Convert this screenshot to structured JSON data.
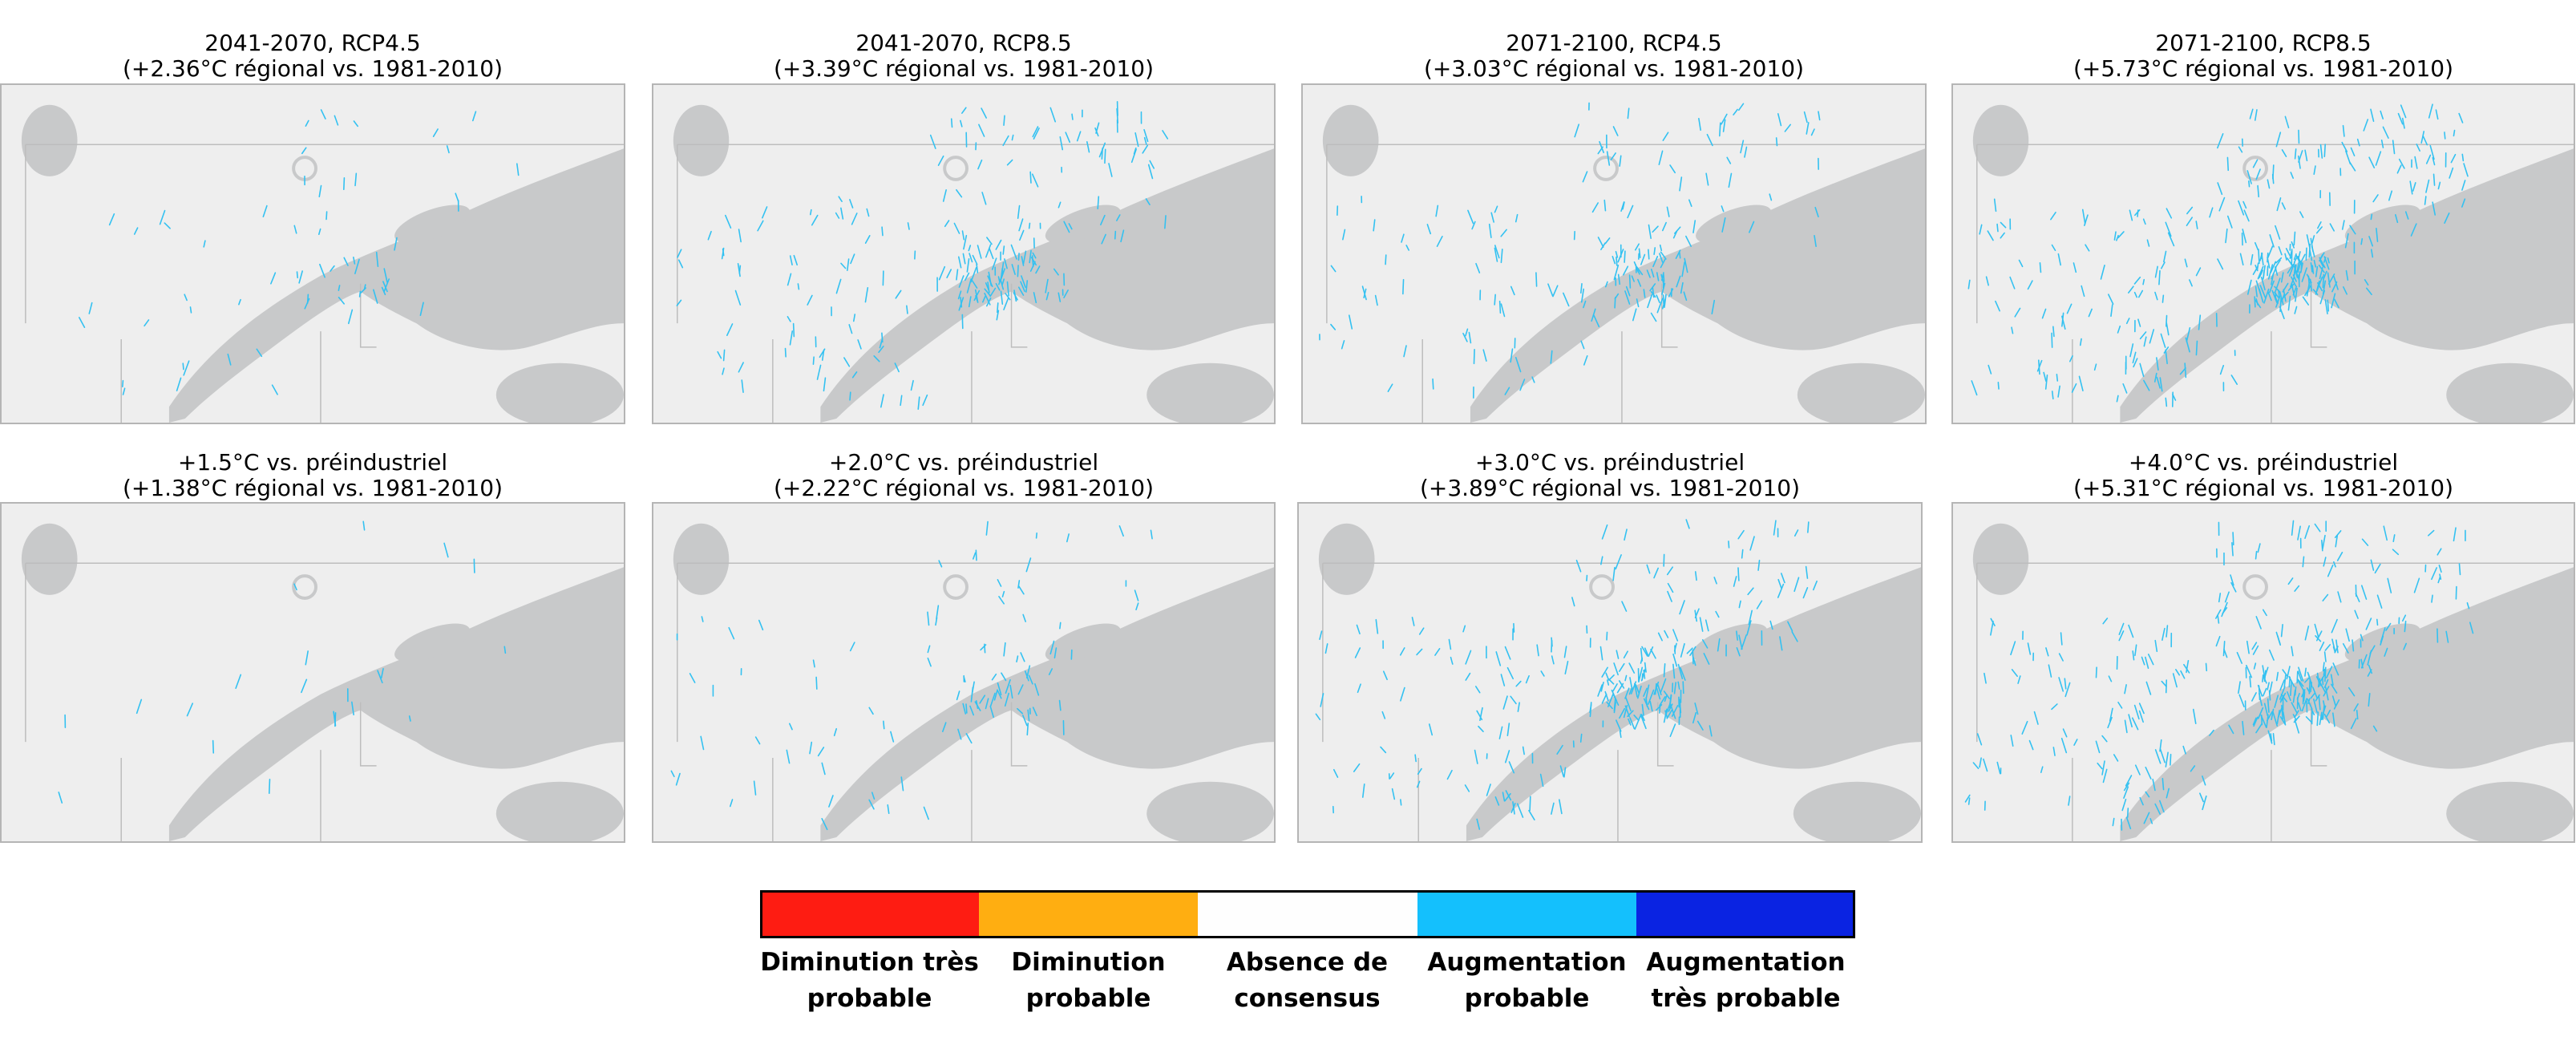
{
  "colors": {
    "land": "#eeeeee",
    "water": "#c8c9ca",
    "border": "#bdbdbd",
    "river_increase": "#33c1f1"
  },
  "panels": [
    {
      "line1": "2041-2070, RCP4.5",
      "line2": "(+2.36°C régional vs. 1981-2010)",
      "intensity": 0.15
    },
    {
      "line1": "2041-2070, RCP8.5",
      "line2": "(+3.39°C régional vs. 1981-2010)",
      "intensity": 0.55
    },
    {
      "line1": "2071-2100, RCP4.5",
      "line2": "(+3.03°C régional vs. 1981-2010)",
      "intensity": 0.45
    },
    {
      "line1": "2071-2100, RCP8.5",
      "line2": "(+5.73°C régional vs. 1981-2010)",
      "intensity": 0.9
    },
    {
      "line1": "+1.5°C vs. préindustriel",
      "line2": "(+1.38°C régional vs. 1981-2010)",
      "intensity": 0.05
    },
    {
      "line1": "+2.0°C vs. préindustriel",
      "line2": "(+2.22°C régional vs. 1981-2010)",
      "intensity": 0.25
    },
    {
      "line1": "+3.0°C vs. préindustriel",
      "line2": "(+3.89°C régional vs. 1981-2010)",
      "intensity": 0.65
    },
    {
      "line1": "+4.0°C vs. préindustriel",
      "line2": "(+5.31°C régional vs. 1981-2010)",
      "intensity": 0.85
    }
  ],
  "legend": [
    {
      "label": "Diminution très probable",
      "color": "#fe1c12"
    },
    {
      "label": "Diminution probable",
      "color": "#ffae11"
    },
    {
      "label": "Absence de consensus",
      "color": "#fefefe"
    },
    {
      "label": "Augmentation probable",
      "color": "#14c0fd"
    },
    {
      "label": "Augmentation très probable",
      "color": "#0a23e2"
    }
  ]
}
